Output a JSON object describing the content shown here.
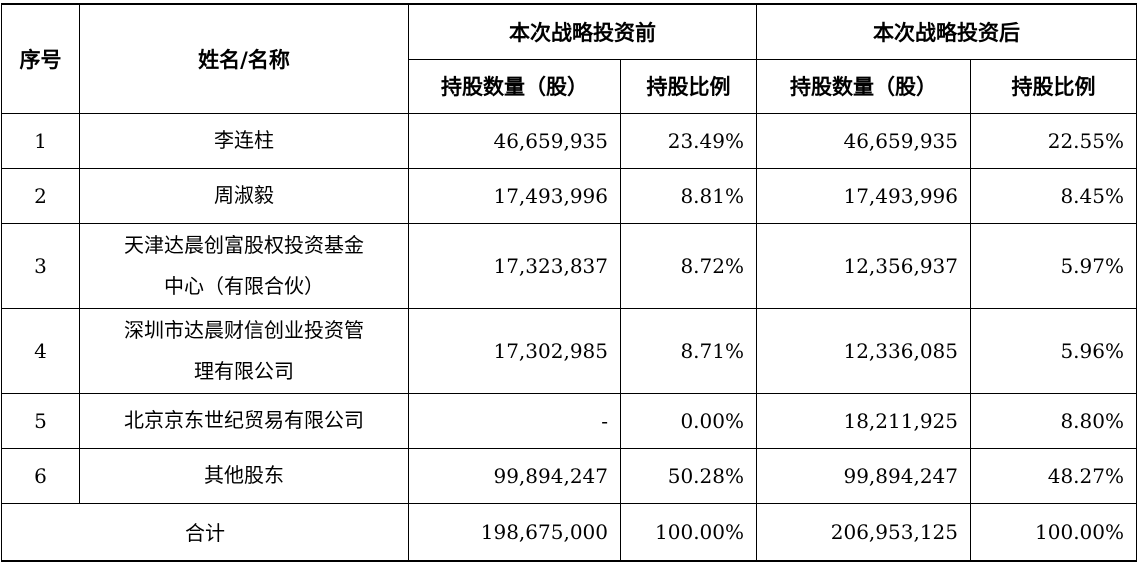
{
  "header": {
    "seq": "序号",
    "name": "姓名/名称",
    "before_group": "本次战略投资前",
    "after_group": "本次战略投资后",
    "shares_qty": "持股数量（股）",
    "shares_ratio": "持股比例",
    "shares_qty_after": "持股数量（股）",
    "shares_ratio_after": "持股比例"
  },
  "rows": [
    {
      "seq": "1",
      "name": "李连柱",
      "before_qty": "46,659,935",
      "before_ratio": "23.49%",
      "after_qty": "46,659,935",
      "after_ratio": "22.55%"
    },
    {
      "seq": "2",
      "name": "周淑毅",
      "before_qty": "17,493,996",
      "before_ratio": "8.81%",
      "after_qty": "17,493,996",
      "after_ratio": "8.45%"
    },
    {
      "seq": "3",
      "name_line1": "天津达晨创富股权投资基金",
      "name_line2": "中心（有限合伙）",
      "before_qty": "17,323,837",
      "before_ratio": "8.72%",
      "after_qty": "12,356,937",
      "after_ratio": "5.97%"
    },
    {
      "seq": "4",
      "name_line1": "深圳市达晨财信创业投资管",
      "name_line2": "理有限公司",
      "before_qty": "17,302,985",
      "before_ratio": "8.71%",
      "after_qty": "12,336,085",
      "after_ratio": "5.96%"
    },
    {
      "seq": "5",
      "name": "北京京东世纪贸易有限公司",
      "before_qty": "-",
      "before_ratio": "0.00%",
      "after_qty": "18,211,925",
      "after_ratio": "8.80%"
    },
    {
      "seq": "6",
      "name": "其他股东",
      "before_qty": "99,894,247",
      "before_ratio": "50.28%",
      "after_qty": "99,894,247",
      "after_ratio": "48.27%"
    }
  ],
  "total": {
    "label": "合计",
    "before_qty": "198,675,000",
    "before_ratio": "100.00%",
    "after_qty": "206,953,125",
    "after_ratio": "100.00%"
  }
}
